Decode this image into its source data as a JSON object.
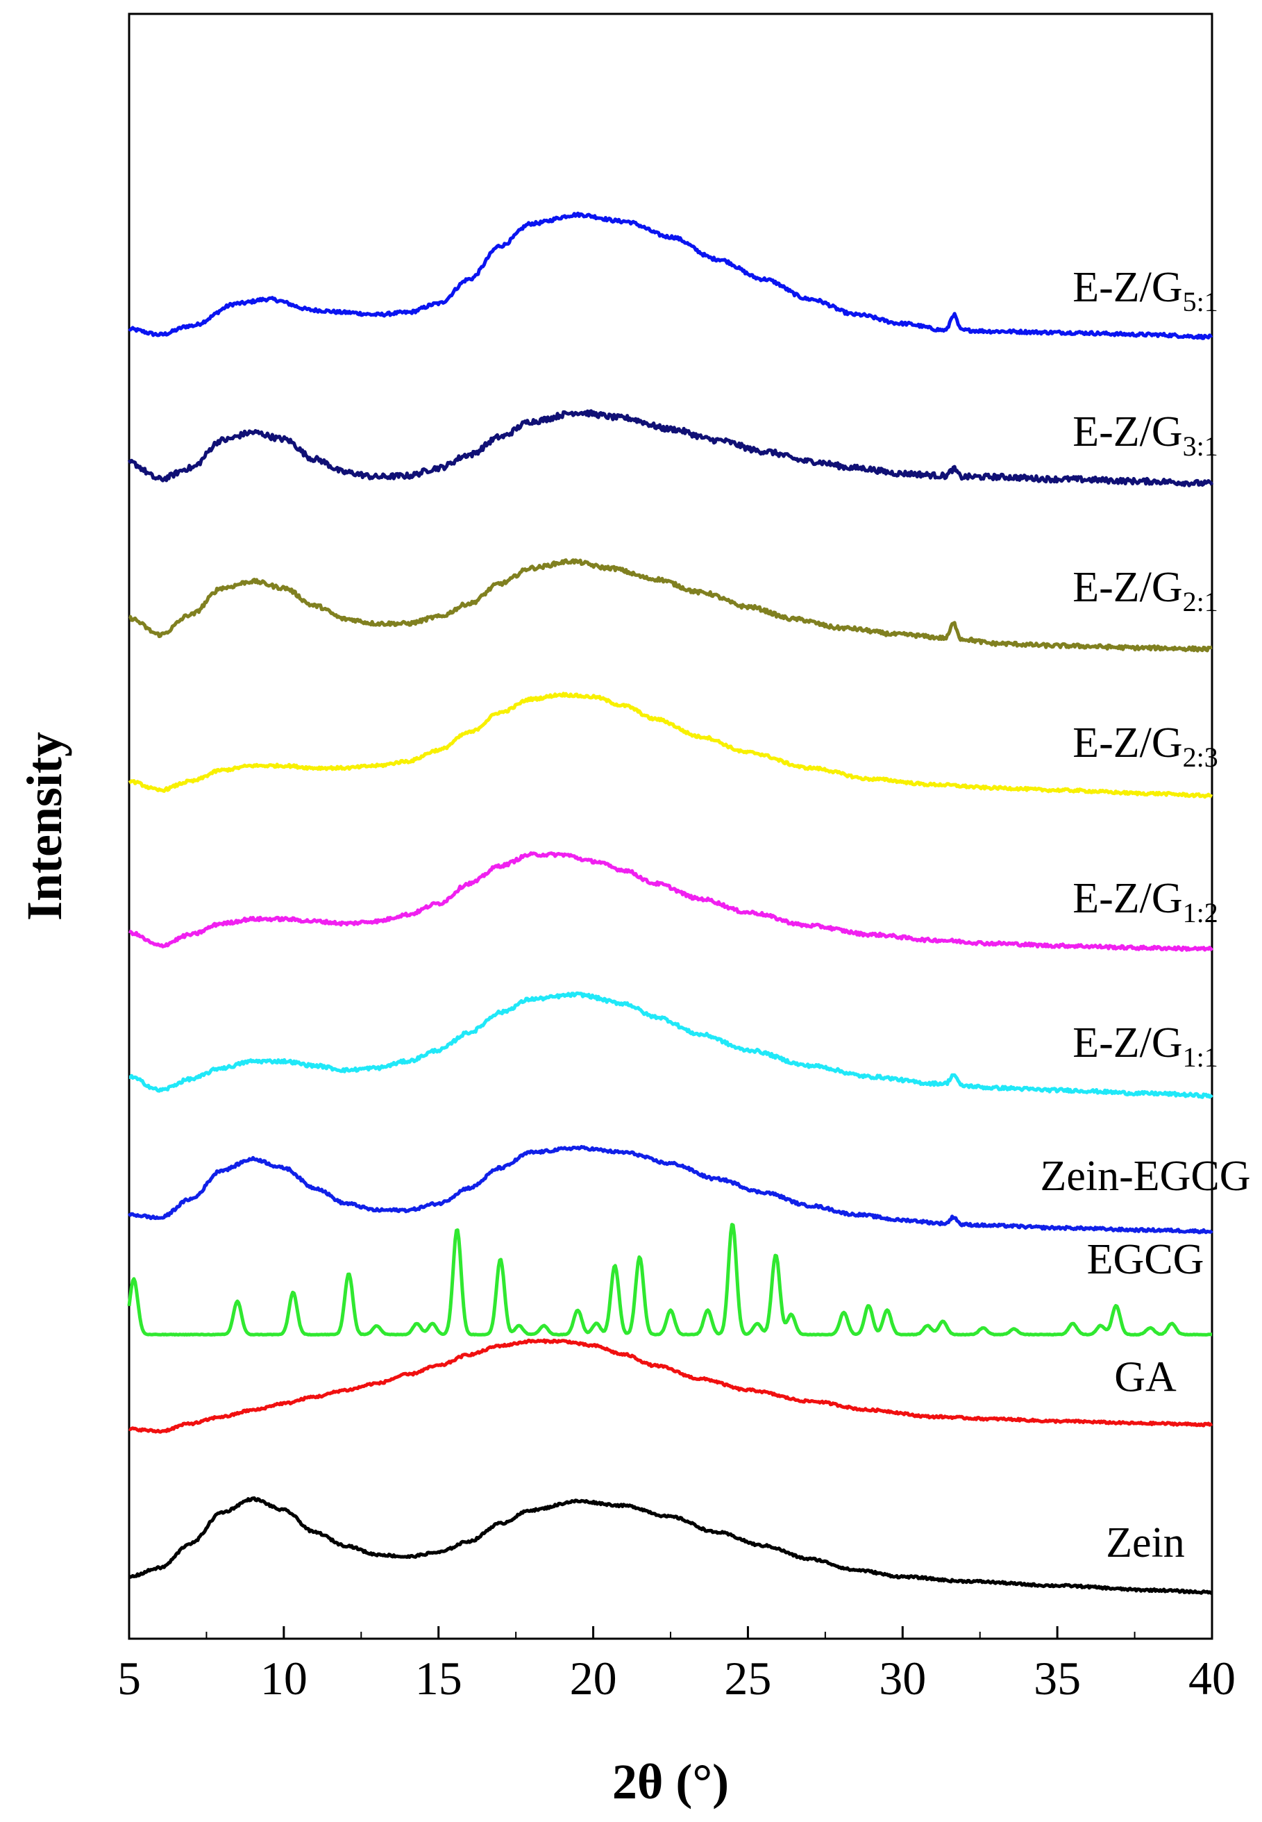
{
  "chart_data": {
    "type": "line",
    "title": "",
    "xlabel": "2θ (°)",
    "ylabel": "Intensity",
    "xlim": [
      5,
      40
    ],
    "xticks": [
      5,
      10,
      15,
      20,
      25,
      30,
      35,
      40
    ],
    "yticks": [],
    "grid": false,
    "series": [
      {
        "id": "E-Z/G5:1",
        "base": "E-Z/G",
        "sub": "5:1",
        "color": "#0a14f0",
        "offset": 11.3,
        "noise": 0.03,
        "points": [
          [
            5,
            0.05
          ],
          [
            6,
            0
          ],
          [
            7,
            0.08
          ],
          [
            8.5,
            0.28
          ],
          [
            9.5,
            0.32
          ],
          [
            11,
            0.22
          ],
          [
            12,
            0.2
          ],
          [
            13,
            0.18
          ],
          [
            14,
            0.2
          ],
          [
            15,
            0.28
          ],
          [
            16,
            0.5
          ],
          [
            17,
            0.8
          ],
          [
            18,
            1.0
          ],
          [
            19.5,
            1.08
          ],
          [
            21,
            1.02
          ],
          [
            22.5,
            0.88
          ],
          [
            24,
            0.68
          ],
          [
            25.5,
            0.5
          ],
          [
            27,
            0.32
          ],
          [
            28.5,
            0.18
          ],
          [
            30,
            0.1
          ],
          [
            31.4,
            0.04
          ],
          [
            31.65,
            0.18
          ],
          [
            31.9,
            0.04
          ],
          [
            33,
            0.03
          ],
          [
            35,
            0.02
          ],
          [
            38,
            0.0
          ],
          [
            40,
            -0.02
          ]
        ]
      },
      {
        "id": "E-Z/G3:1",
        "base": "E-Z/G",
        "sub": "3:1",
        "color": "#101075",
        "offset": 10.0,
        "noise": 0.05,
        "points": [
          [
            5,
            0.15
          ],
          [
            6,
            0.0
          ],
          [
            7,
            0.1
          ],
          [
            8,
            0.35
          ],
          [
            9,
            0.42
          ],
          [
            10,
            0.36
          ],
          [
            11,
            0.18
          ],
          [
            12,
            0.06
          ],
          [
            13,
            0.02
          ],
          [
            14,
            0.03
          ],
          [
            15,
            0.1
          ],
          [
            16,
            0.22
          ],
          [
            17,
            0.38
          ],
          [
            18,
            0.52
          ],
          [
            19.5,
            0.6
          ],
          [
            21,
            0.55
          ],
          [
            22.5,
            0.45
          ],
          [
            24,
            0.35
          ],
          [
            25.5,
            0.25
          ],
          [
            27,
            0.16
          ],
          [
            28.5,
            0.1
          ],
          [
            30,
            0.05
          ],
          [
            31.4,
            0.03
          ],
          [
            31.65,
            0.09
          ],
          [
            31.9,
            0.02
          ],
          [
            33,
            0.02
          ],
          [
            35,
            0.0
          ],
          [
            38,
            -0.02
          ],
          [
            40,
            -0.04
          ]
        ]
      },
      {
        "id": "E-Z/G2:1",
        "base": "E-Z/G",
        "sub": "2:1",
        "color": "#808020",
        "offset": 8.6,
        "noise": 0.035,
        "points": [
          [
            5,
            0.15
          ],
          [
            6,
            0.0
          ],
          [
            7,
            0.18
          ],
          [
            8,
            0.42
          ],
          [
            9,
            0.48
          ],
          [
            10,
            0.42
          ],
          [
            11,
            0.26
          ],
          [
            12,
            0.14
          ],
          [
            13,
            0.1
          ],
          [
            14,
            0.1
          ],
          [
            15,
            0.16
          ],
          [
            16,
            0.28
          ],
          [
            17,
            0.46
          ],
          [
            18,
            0.6
          ],
          [
            19.3,
            0.66
          ],
          [
            20.5,
            0.6
          ],
          [
            22,
            0.5
          ],
          [
            23.5,
            0.38
          ],
          [
            25,
            0.25
          ],
          [
            26.5,
            0.14
          ],
          [
            28,
            0.06
          ],
          [
            30,
            0.0
          ],
          [
            31.4,
            -0.03
          ],
          [
            31.65,
            0.1
          ],
          [
            31.9,
            -0.04
          ],
          [
            33,
            -0.08
          ],
          [
            35,
            -0.1
          ],
          [
            38,
            -0.12
          ],
          [
            40,
            -0.13
          ]
        ]
      },
      {
        "id": "E-Z/G2:3",
        "base": "E-Z/G",
        "sub": "2:3",
        "color": "#f8f000",
        "offset": 7.2,
        "noise": 0.025,
        "points": [
          [
            5,
            0.08
          ],
          [
            6,
            0.0
          ],
          [
            7,
            0.08
          ],
          [
            8,
            0.18
          ],
          [
            9,
            0.22
          ],
          [
            10,
            0.22
          ],
          [
            11,
            0.2
          ],
          [
            12,
            0.2
          ],
          [
            13,
            0.22
          ],
          [
            14,
            0.26
          ],
          [
            15,
            0.36
          ],
          [
            16,
            0.52
          ],
          [
            17,
            0.7
          ],
          [
            18,
            0.82
          ],
          [
            19,
            0.86
          ],
          [
            20,
            0.84
          ],
          [
            21,
            0.76
          ],
          [
            22,
            0.64
          ],
          [
            23.5,
            0.48
          ],
          [
            25,
            0.34
          ],
          [
            27,
            0.2
          ],
          [
            29,
            0.1
          ],
          [
            31,
            0.05
          ],
          [
            33,
            0.02
          ],
          [
            35,
            0.0
          ],
          [
            38,
            -0.03
          ],
          [
            40,
            -0.05
          ]
        ]
      },
      {
        "id": "E-Z/G1:2",
        "base": "E-Z/G",
        "sub": "1:2",
        "color": "#f020f0",
        "offset": 5.8,
        "noise": 0.03,
        "points": [
          [
            5,
            0.12
          ],
          [
            6,
            0.0
          ],
          [
            7,
            0.1
          ],
          [
            8,
            0.2
          ],
          [
            9,
            0.24
          ],
          [
            10,
            0.24
          ],
          [
            11,
            0.22
          ],
          [
            12,
            0.2
          ],
          [
            13,
            0.22
          ],
          [
            14,
            0.28
          ],
          [
            15,
            0.38
          ],
          [
            16,
            0.56
          ],
          [
            17,
            0.72
          ],
          [
            18,
            0.82
          ],
          [
            19,
            0.82
          ],
          [
            20,
            0.76
          ],
          [
            21,
            0.68
          ],
          [
            22,
            0.56
          ],
          [
            23.5,
            0.42
          ],
          [
            25,
            0.3
          ],
          [
            27,
            0.18
          ],
          [
            29,
            0.1
          ],
          [
            31,
            0.05
          ],
          [
            33,
            0.02
          ],
          [
            35,
            0.0
          ],
          [
            38,
            -0.02
          ],
          [
            40,
            -0.03
          ]
        ]
      },
      {
        "id": "E-Z/G1:1",
        "base": "E-Z/G",
        "sub": "1:1",
        "color": "#20e8f8",
        "offset": 4.5,
        "noise": 0.03,
        "points": [
          [
            5,
            0.12
          ],
          [
            6,
            0.0
          ],
          [
            7,
            0.1
          ],
          [
            8,
            0.2
          ],
          [
            9,
            0.26
          ],
          [
            10,
            0.26
          ],
          [
            11,
            0.22
          ],
          [
            12,
            0.18
          ],
          [
            13,
            0.2
          ],
          [
            14,
            0.26
          ],
          [
            15,
            0.36
          ],
          [
            16,
            0.52
          ],
          [
            17,
            0.7
          ],
          [
            18,
            0.82
          ],
          [
            19.5,
            0.86
          ],
          [
            21,
            0.78
          ],
          [
            22,
            0.66
          ],
          [
            23.5,
            0.5
          ],
          [
            25,
            0.36
          ],
          [
            27,
            0.22
          ],
          [
            29,
            0.12
          ],
          [
            31,
            0.06
          ],
          [
            31.4,
            0.06
          ],
          [
            31.65,
            0.14
          ],
          [
            31.9,
            0.04
          ],
          [
            33,
            0.02
          ],
          [
            35,
            0.0
          ],
          [
            38,
            -0.03
          ],
          [
            40,
            -0.05
          ]
        ]
      },
      {
        "id": "Zein-EGCG",
        "base": "Zein-EGCG",
        "sub": "",
        "color": "#1020e8",
        "offset": 3.3,
        "noise": 0.025,
        "points": [
          [
            5,
            0.08
          ],
          [
            6,
            0.05
          ],
          [
            7,
            0.22
          ],
          [
            8,
            0.48
          ],
          [
            9,
            0.58
          ],
          [
            10,
            0.5
          ],
          [
            11,
            0.32
          ],
          [
            12,
            0.18
          ],
          [
            13,
            0.12
          ],
          [
            14,
            0.12
          ],
          [
            15,
            0.18
          ],
          [
            16,
            0.32
          ],
          [
            17,
            0.5
          ],
          [
            18,
            0.64
          ],
          [
            19.5,
            0.68
          ],
          [
            21,
            0.64
          ],
          [
            22.5,
            0.54
          ],
          [
            24,
            0.4
          ],
          [
            25.5,
            0.28
          ],
          [
            27,
            0.16
          ],
          [
            28.5,
            0.08
          ],
          [
            30,
            0.03
          ],
          [
            31.4,
            0.0
          ],
          [
            31.65,
            0.06
          ],
          [
            31.9,
            -0.01
          ],
          [
            33,
            -0.02
          ],
          [
            35,
            -0.04
          ],
          [
            38,
            -0.06
          ],
          [
            40,
            -0.07
          ]
        ]
      },
      {
        "id": "EGCG",
        "base": "EGCG",
        "sub": "",
        "color": "#30e830",
        "offset": 2.3,
        "noise": 0.005,
        "points": [
          [
            5,
            0
          ],
          [
            40,
            0
          ]
        ],
        "peaks": [
          [
            5.15,
            0.5
          ],
          [
            8.5,
            0.3
          ],
          [
            10.3,
            0.38
          ],
          [
            12.1,
            0.55
          ],
          [
            13.0,
            0.08
          ],
          [
            14.3,
            0.1
          ],
          [
            14.8,
            0.1
          ],
          [
            15.6,
            0.95
          ],
          [
            17.0,
            0.68
          ],
          [
            17.6,
            0.08
          ],
          [
            18.4,
            0.08
          ],
          [
            19.5,
            0.22
          ],
          [
            20.1,
            0.1
          ],
          [
            20.7,
            0.62
          ],
          [
            21.5,
            0.7
          ],
          [
            22.5,
            0.22
          ],
          [
            23.7,
            0.22
          ],
          [
            24.5,
            1.0
          ],
          [
            25.3,
            0.1
          ],
          [
            25.9,
            0.72
          ],
          [
            26.4,
            0.18
          ],
          [
            28.1,
            0.2
          ],
          [
            28.9,
            0.26
          ],
          [
            29.5,
            0.22
          ],
          [
            30.8,
            0.08
          ],
          [
            31.3,
            0.12
          ],
          [
            32.6,
            0.06
          ],
          [
            33.6,
            0.05
          ],
          [
            35.5,
            0.1
          ],
          [
            36.4,
            0.08
          ],
          [
            36.9,
            0.26
          ],
          [
            38.0,
            0.06
          ],
          [
            38.7,
            0.1
          ]
        ]
      },
      {
        "id": "GA",
        "base": "GA",
        "sub": "",
        "color": "#f01010",
        "offset": 1.4,
        "noise": 0.02,
        "points": [
          [
            5,
            0.05
          ],
          [
            6,
            0.03
          ],
          [
            7,
            0.1
          ],
          [
            8,
            0.16
          ],
          [
            9,
            0.22
          ],
          [
            10,
            0.28
          ],
          [
            11,
            0.34
          ],
          [
            12,
            0.4
          ],
          [
            13,
            0.46
          ],
          [
            14,
            0.54
          ],
          [
            15,
            0.62
          ],
          [
            16,
            0.72
          ],
          [
            17,
            0.8
          ],
          [
            18,
            0.84
          ],
          [
            19,
            0.84
          ],
          [
            20,
            0.8
          ],
          [
            21,
            0.72
          ],
          [
            22,
            0.62
          ],
          [
            23.5,
            0.5
          ],
          [
            25,
            0.4
          ],
          [
            27,
            0.3
          ],
          [
            29,
            0.22
          ],
          [
            31,
            0.16
          ],
          [
            33,
            0.14
          ],
          [
            35,
            0.12
          ],
          [
            38,
            0.1
          ],
          [
            40,
            0.09
          ]
        ]
      },
      {
        "id": "Zein",
        "base": "Zein",
        "sub": "",
        "color": "#000000",
        "offset": 0.0,
        "noise": 0.02,
        "points": [
          [
            5,
            0.12
          ],
          [
            6,
            0.2
          ],
          [
            7,
            0.42
          ],
          [
            8,
            0.7
          ],
          [
            9,
            0.82
          ],
          [
            10,
            0.72
          ],
          [
            11,
            0.52
          ],
          [
            12,
            0.4
          ],
          [
            13,
            0.32
          ],
          [
            14,
            0.3
          ],
          [
            15,
            0.34
          ],
          [
            16,
            0.44
          ],
          [
            17,
            0.6
          ],
          [
            18,
            0.72
          ],
          [
            19.5,
            0.8
          ],
          [
            21,
            0.76
          ],
          [
            22.5,
            0.66
          ],
          [
            24,
            0.52
          ],
          [
            25.5,
            0.4
          ],
          [
            27,
            0.28
          ],
          [
            28.5,
            0.18
          ],
          [
            30,
            0.12
          ],
          [
            32,
            0.08
          ],
          [
            35,
            0.04
          ],
          [
            38,
            0.0
          ],
          [
            40,
            -0.02
          ]
        ]
      }
    ]
  }
}
